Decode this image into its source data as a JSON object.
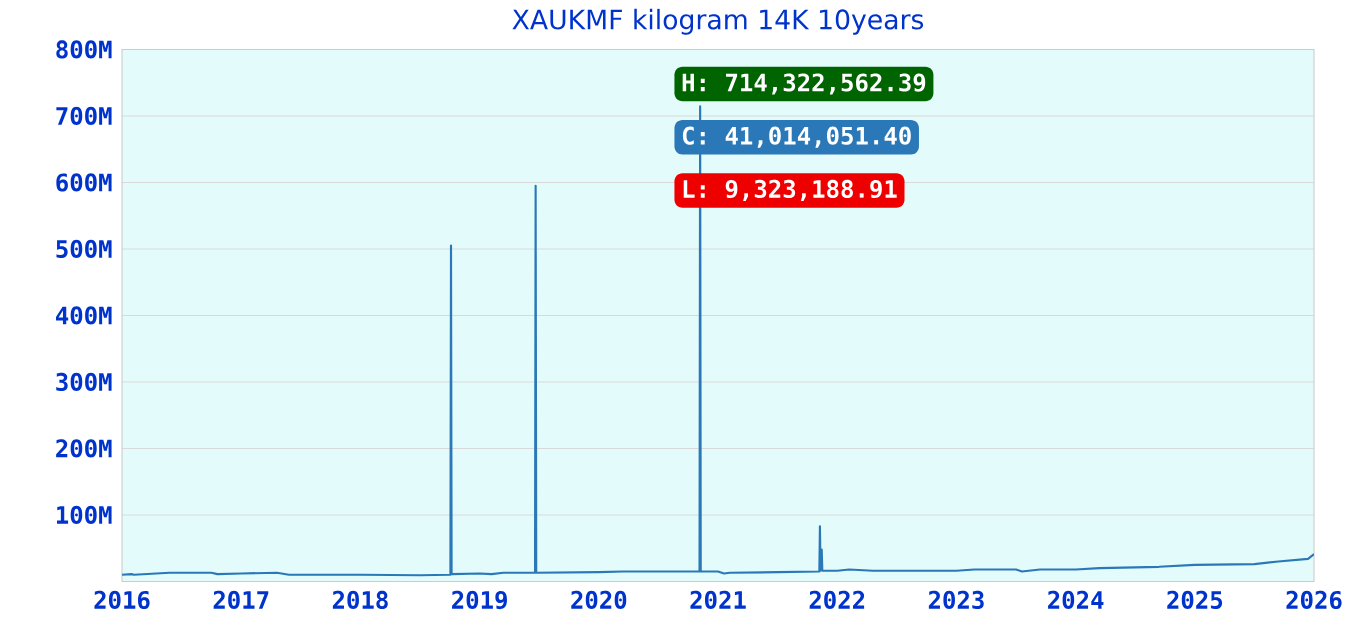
{
  "chart_data": {
    "type": "line",
    "title": "XAUKMF kilogram 14K 10years",
    "x": [
      2016.0,
      2016.08,
      2016.1,
      2016.4,
      2016.75,
      2016.8,
      2017.0,
      2017.3,
      2017.4,
      2018.0,
      2018.5,
      2018.755,
      2018.76,
      2018.765,
      2019.0,
      2019.1,
      2019.2,
      2019.465,
      2019.47,
      2019.475,
      2020.0,
      2020.2,
      2020.845,
      2020.85,
      2020.855,
      2021.0,
      2021.05,
      2021.1,
      2021.5,
      2021.85,
      2021.855,
      2021.86,
      2021.87,
      2021.875,
      2022.0,
      2022.1,
      2022.3,
      2023.0,
      2023.15,
      2023.5,
      2023.55,
      2023.7,
      2024.0,
      2024.2,
      2024.7,
      2025.0,
      2025.5,
      2025.7,
      2025.95,
      2026.0
    ],
    "series": [
      {
        "color": "#2a78b8",
        "values": [
          10000000,
          11000000,
          10000000,
          13000000,
          13000000,
          11000000,
          12000000,
          13000000,
          10000000,
          10000000,
          9300000,
          10000000,
          505000000,
          11000000,
          12000000,
          11000000,
          13000000,
          13000000,
          595000000,
          13000000,
          14000000,
          15000000,
          15000000,
          714300000,
          15000000,
          15000000,
          12000000,
          13000000,
          14000000,
          15000000,
          83000000,
          16000000,
          48000000,
          16000000,
          16000000,
          18000000,
          16000000,
          16000000,
          18000000,
          18000000,
          15000000,
          18000000,
          18000000,
          20000000,
          22000000,
          25000000,
          26000000,
          30000000,
          34000000,
          41000000
        ]
      }
    ],
    "xlim": [
      2016,
      2026
    ],
    "xticks": [
      2016,
      2017,
      2018,
      2019,
      2020,
      2021,
      2022,
      2023,
      2024,
      2025,
      2026
    ],
    "ylim": [
      0,
      800000000
    ],
    "yticks": [
      {
        "value": 100000000,
        "label": "100M"
      },
      {
        "value": 200000000,
        "label": "200M"
      },
      {
        "value": 300000000,
        "label": "300M"
      },
      {
        "value": 400000000,
        "label": "400M"
      },
      {
        "value": 500000000,
        "label": "500M"
      },
      {
        "value": 600000000,
        "label": "600M"
      },
      {
        "value": 700000000,
        "label": "700M"
      },
      {
        "value": 800000000,
        "label": "800M"
      }
    ],
    "grid": "y",
    "annotations": [
      "H: 714,322,562.39",
      "C: 41,014,051.40",
      "L: 9,323,188.91"
    ]
  }
}
